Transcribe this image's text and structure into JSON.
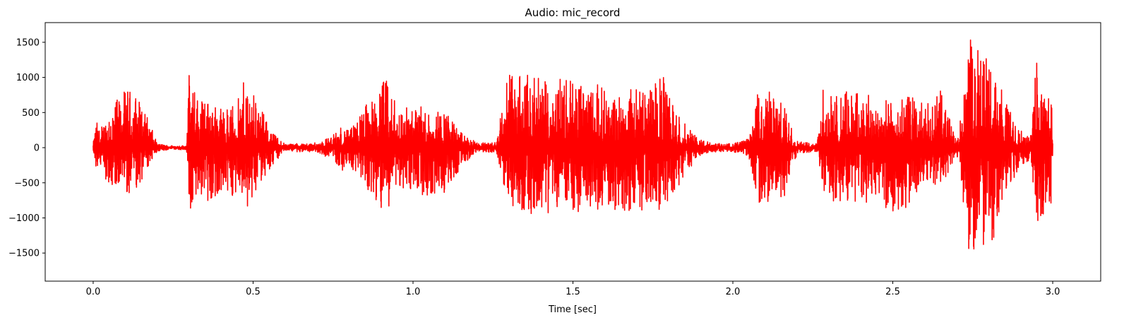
{
  "chart_data": {
    "type": "line",
    "title": "Audio: mic_record",
    "xlabel": "Time [sec]",
    "ylabel": "",
    "xlim": [
      -0.15,
      3.15
    ],
    "ylim": [
      -1900,
      1780
    ],
    "xticks": [
      0.0,
      0.5,
      1.0,
      1.5,
      2.0,
      2.5,
      3.0
    ],
    "xtick_labels": [
      "0.0",
      "0.5",
      "1.0",
      "1.5",
      "2.0",
      "2.5",
      "3.0"
    ],
    "yticks": [
      -1500,
      -1000,
      -500,
      0,
      500,
      1000,
      1500
    ],
    "ytick_labels": [
      "−1500",
      "−1000",
      "−500",
      "0",
      "500",
      "1000",
      "1500"
    ],
    "grid": false,
    "series": [
      {
        "color": "#ff0000",
        "envelope": {
          "t": [
            0.0,
            0.01,
            0.02,
            0.05,
            0.1,
            0.13,
            0.16,
            0.2,
            0.24,
            0.29,
            0.3,
            0.31,
            0.35,
            0.4,
            0.45,
            0.48,
            0.52,
            0.56,
            0.6,
            0.64,
            0.7,
            0.75,
            0.78,
            0.8,
            0.85,
            0.88,
            0.91,
            0.95,
            1.0,
            1.05,
            1.1,
            1.15,
            1.2,
            1.26,
            1.28,
            1.3,
            1.33,
            1.38,
            1.43,
            1.48,
            1.53,
            1.58,
            1.63,
            1.68,
            1.73,
            1.78,
            1.82,
            1.88,
            1.91,
            1.95,
            2.0,
            2.05,
            2.08,
            2.12,
            2.16,
            2.2,
            2.26,
            2.28,
            2.3,
            2.35,
            2.4,
            2.45,
            2.5,
            2.55,
            2.6,
            2.65,
            2.7,
            2.72,
            2.74,
            2.75,
            2.78,
            2.82,
            2.86,
            2.9,
            2.93,
            2.95,
            2.98,
            3.0
          ],
          "high": [
            60,
            400,
            250,
            560,
            820,
            820,
            560,
            60,
            30,
            30,
            1090,
            850,
            720,
            580,
            640,
            1080,
            600,
            220,
            60,
            60,
            70,
            180,
            330,
            230,
            620,
            740,
            1040,
            610,
            590,
            580,
            550,
            220,
            70,
            80,
            670,
            1060,
            1120,
            990,
            980,
            1080,
            870,
            900,
            760,
            850,
            830,
            1040,
            520,
            180,
            100,
            60,
            60,
            130,
            850,
            820,
            600,
            100,
            60,
            830,
            780,
            810,
            800,
            760,
            640,
            780,
            600,
            810,
            100,
            640,
            1620,
            1440,
            1440,
            1080,
            590,
            260,
            120,
            1280,
            810,
            700
          ],
          "low": [
            -80,
            -350,
            -300,
            -530,
            -650,
            -650,
            -430,
            -50,
            -30,
            -30,
            -1120,
            -780,
            -820,
            -700,
            -680,
            -860,
            -530,
            -280,
            -40,
            -60,
            -60,
            -180,
            -330,
            -220,
            -600,
            -710,
            -990,
            -550,
            -620,
            -730,
            -640,
            -280,
            -60,
            -70,
            -590,
            -780,
            -930,
            -940,
            -930,
            -920,
            -910,
            -880,
            -880,
            -900,
            -900,
            -900,
            -610,
            -200,
            -80,
            -60,
            -60,
            -130,
            -800,
            -770,
            -720,
            -100,
            -60,
            -620,
            -780,
            -780,
            -780,
            -770,
            -920,
            -860,
            -450,
            -600,
            -80,
            -760,
            -1760,
            -1450,
            -1400,
            -1340,
            -580,
            -300,
            -160,
            -1160,
            -850,
            -860
          ]
        }
      }
    ]
  }
}
